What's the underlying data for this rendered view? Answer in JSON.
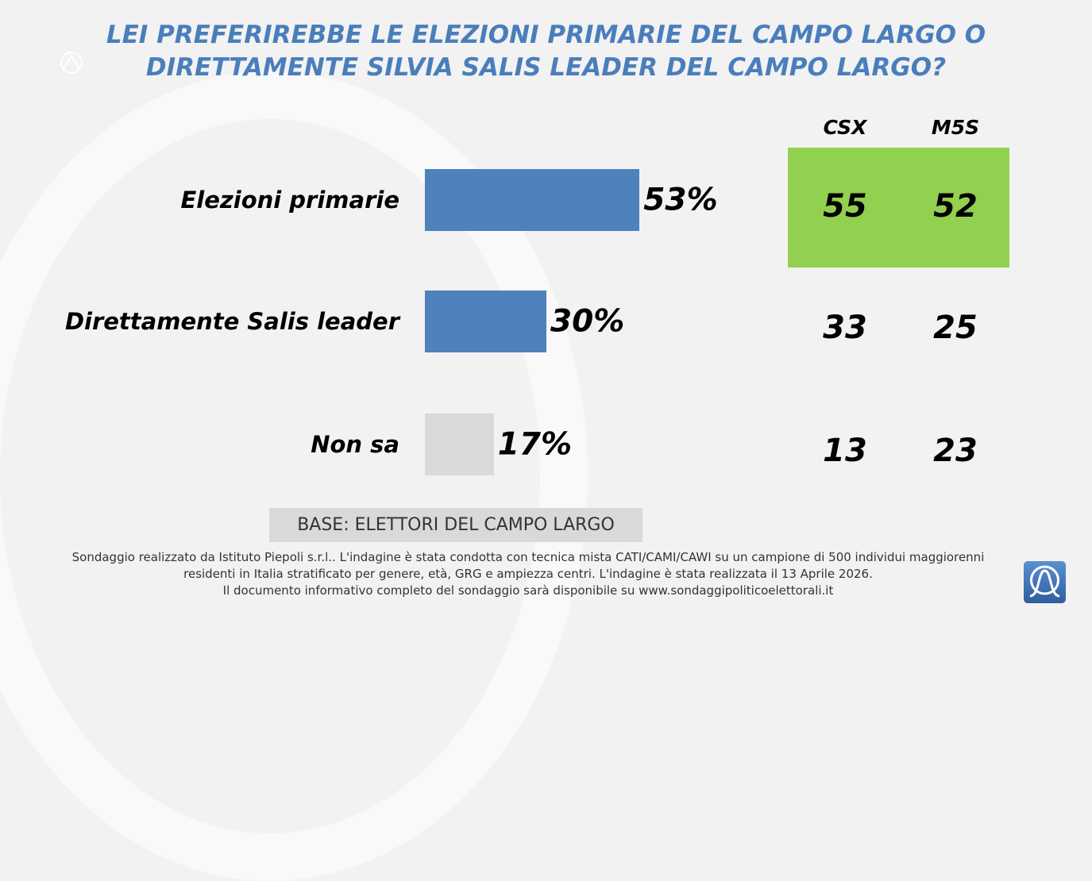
{
  "title": "LEI PREFERIREBBE LE ELEZIONI PRIMARIE DEL CAMPO LARGO O DIRETTAMENTE SILVIA SALIS LEADER DEL CAMPO LARGO?",
  "chart_data": {
    "type": "bar",
    "orientation": "horizontal",
    "title": "LEI PREFERIREBBE LE ELEZIONI PRIMARIE DEL CAMPO LARGO O DIRETTAMENTE SILVIA SALIS LEADER DEL CAMPO LARGO?",
    "categories": [
      "Elezioni primarie",
      "Direttamente Salis leader",
      "Non sa"
    ],
    "values": [
      53,
      30,
      17
    ],
    "value_labels": [
      "53%",
      "30%",
      "17%"
    ],
    "colors": [
      "#4f81bd",
      "#4f81bd",
      "#d9d9d9"
    ],
    "xlim": [
      0,
      100
    ],
    "table": {
      "columns": [
        "CSX",
        "M5S"
      ],
      "rows": [
        [
          "55",
          "52"
        ],
        [
          "33",
          "25"
        ],
        [
          "13",
          "23"
        ]
      ],
      "highlight_color": "#92d050"
    }
  },
  "base": "BASE: ELETTORI DEL CAMPO LARGO",
  "footnote": [
    "Sondaggio realizzato da Istituto Piepoli s.r.l.. L'indagine è stata condotta con tecnica mista CATI/CAMI/CAWI su un campione di 500 individui maggiorenni",
    "residenti in Italia stratificato per genere, età, GRG e ampiezza centri. L'indagine è stata realizzata il 13 Aprile 2026.",
    "Il documento informativo completo del sondaggio sarà disponibile su www.sondaggipoliticoelettorali.it"
  ]
}
